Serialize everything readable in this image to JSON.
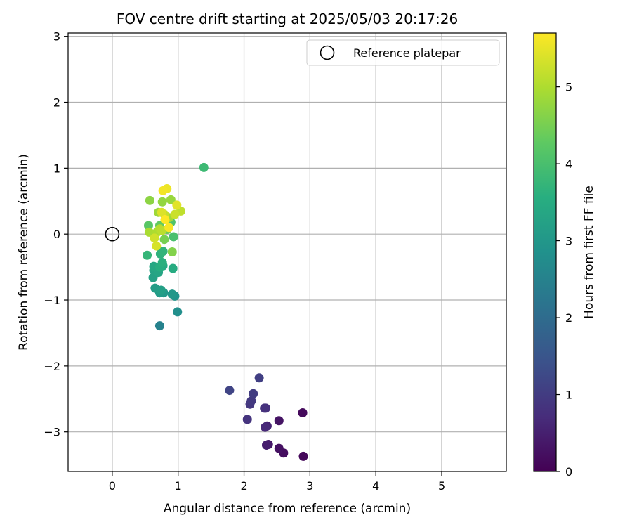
{
  "chart_data": {
    "type": "scatter",
    "title": "FOV centre drift starting at 2025/05/03 20:17:26",
    "xlabel": "Angular distance from reference (arcmin)",
    "ylabel": "Rotation from reference (arcmin)",
    "xlim": [
      -0.67,
      5.98
    ],
    "ylim": [
      -3.6,
      3.05
    ],
    "xticks": [
      0,
      1,
      2,
      3,
      4,
      5
    ],
    "xtick_labels": [
      "0",
      "1",
      "2",
      "3",
      "4",
      "5"
    ],
    "yticks": [
      -3,
      -2,
      -1,
      0,
      1,
      2,
      3
    ],
    "ytick_labels": [
      "−3",
      "−2",
      "−1",
      "0",
      "1",
      "2",
      "3"
    ],
    "grid": true,
    "colormap": "viridis",
    "colorbar": {
      "label": "Hours from first FF file",
      "range": [
        0,
        5.7
      ],
      "ticks": [
        0,
        1,
        2,
        3,
        4,
        5
      ],
      "tick_labels": [
        "0",
        "1",
        "2",
        "3",
        "4",
        "5"
      ]
    },
    "legend": {
      "position": "top-right",
      "entries": [
        {
          "label": "Reference platepar",
          "marker": "open-circle"
        }
      ]
    },
    "reference": {
      "x": 0,
      "y": 0
    },
    "points": [
      {
        "x": 2.9,
        "y": -3.37,
        "c": 0.1
      },
      {
        "x": 2.89,
        "y": -2.71,
        "c": 0.15
      },
      {
        "x": 2.6,
        "y": -3.32,
        "c": 0.2
      },
      {
        "x": 2.53,
        "y": -3.25,
        "c": 0.25
      },
      {
        "x": 2.53,
        "y": -2.83,
        "c": 0.3
      },
      {
        "x": 2.37,
        "y": -3.19,
        "c": 0.35
      },
      {
        "x": 2.34,
        "y": -3.2,
        "c": 0.45
      },
      {
        "x": 2.35,
        "y": -2.91,
        "c": 0.55
      },
      {
        "x": 2.32,
        "y": -2.93,
        "c": 0.65
      },
      {
        "x": 2.33,
        "y": -2.64,
        "c": 0.75
      },
      {
        "x": 2.31,
        "y": -2.64,
        "c": 0.8
      },
      {
        "x": 2.05,
        "y": -2.81,
        "c": 0.85
      },
      {
        "x": 2.09,
        "y": -2.58,
        "c": 0.9
      },
      {
        "x": 2.11,
        "y": -2.53,
        "c": 0.95
      },
      {
        "x": 2.14,
        "y": -2.42,
        "c": 1.0
      },
      {
        "x": 2.23,
        "y": -2.18,
        "c": 1.05
      },
      {
        "x": 1.78,
        "y": -2.37,
        "c": 1.15
      },
      {
        "x": 0.72,
        "y": -1.39,
        "c": 2.5
      },
      {
        "x": 0.99,
        "y": -1.18,
        "c": 2.8
      },
      {
        "x": 0.95,
        "y": -0.94,
        "c": 2.9
      },
      {
        "x": 0.91,
        "y": -0.91,
        "c": 3.0
      },
      {
        "x": 0.78,
        "y": -0.89,
        "c": 3.05
      },
      {
        "x": 0.72,
        "y": -0.89,
        "c": 3.1
      },
      {
        "x": 0.65,
        "y": -0.82,
        "c": 3.15
      },
      {
        "x": 0.74,
        "y": -0.85,
        "c": 3.2
      },
      {
        "x": 0.62,
        "y": -0.66,
        "c": 3.25
      },
      {
        "x": 0.63,
        "y": -0.55,
        "c": 3.3
      },
      {
        "x": 0.7,
        "y": -0.58,
        "c": 3.35
      },
      {
        "x": 0.63,
        "y": -0.49,
        "c": 3.4
      },
      {
        "x": 0.77,
        "y": -0.48,
        "c": 3.45
      },
      {
        "x": 0.92,
        "y": -0.52,
        "c": 3.5
      },
      {
        "x": 0.72,
        "y": -0.5,
        "c": 3.55
      },
      {
        "x": 0.76,
        "y": -0.43,
        "c": 3.6
      },
      {
        "x": 0.73,
        "y": -0.3,
        "c": 3.65
      },
      {
        "x": 0.77,
        "y": -0.26,
        "c": 3.7
      },
      {
        "x": 0.53,
        "y": -0.32,
        "c": 3.75
      },
      {
        "x": 1.39,
        "y": 1.01,
        "c": 3.85
      },
      {
        "x": 0.93,
        "y": -0.04,
        "c": 4.0
      },
      {
        "x": 0.89,
        "y": 0.18,
        "c": 4.1
      },
      {
        "x": 0.55,
        "y": 0.13,
        "c": 4.2
      },
      {
        "x": 0.72,
        "y": 0.13,
        "c": 4.3
      },
      {
        "x": 0.83,
        "y": 0.07,
        "c": 4.4
      },
      {
        "x": 0.79,
        "y": -0.08,
        "c": 4.5
      },
      {
        "x": 0.91,
        "y": -0.27,
        "c": 4.6
      },
      {
        "x": 0.57,
        "y": 0.51,
        "c": 4.7
      },
      {
        "x": 0.76,
        "y": 0.49,
        "c": 4.75
      },
      {
        "x": 0.89,
        "y": 0.52,
        "c": 4.8
      },
      {
        "x": 0.7,
        "y": 0.33,
        "c": 4.85
      },
      {
        "x": 0.86,
        "y": 0.25,
        "c": 4.9
      },
      {
        "x": 0.56,
        "y": 0.03,
        "c": 4.95
      },
      {
        "x": 0.68,
        "y": 0.03,
        "c": 5.0
      },
      {
        "x": 0.72,
        "y": 0.08,
        "c": 5.05
      },
      {
        "x": 0.75,
        "y": 0.05,
        "c": 5.1
      },
      {
        "x": 1.04,
        "y": 0.35,
        "c": 5.15
      },
      {
        "x": 0.79,
        "y": 0.3,
        "c": 5.2
      },
      {
        "x": 0.95,
        "y": 0.3,
        "c": 5.25
      },
      {
        "x": 0.64,
        "y": -0.06,
        "c": 5.3
      },
      {
        "x": 0.67,
        "y": -0.18,
        "c": 5.35
      },
      {
        "x": 0.75,
        "y": 0.33,
        "c": 5.4
      },
      {
        "x": 0.98,
        "y": 0.44,
        "c": 5.45
      },
      {
        "x": 0.83,
        "y": 0.69,
        "c": 5.55
      },
      {
        "x": 0.77,
        "y": 0.66,
        "c": 5.6
      },
      {
        "x": 0.86,
        "y": 0.1,
        "c": 5.65
      },
      {
        "x": 0.8,
        "y": 0.22,
        "c": 5.7
      }
    ]
  }
}
